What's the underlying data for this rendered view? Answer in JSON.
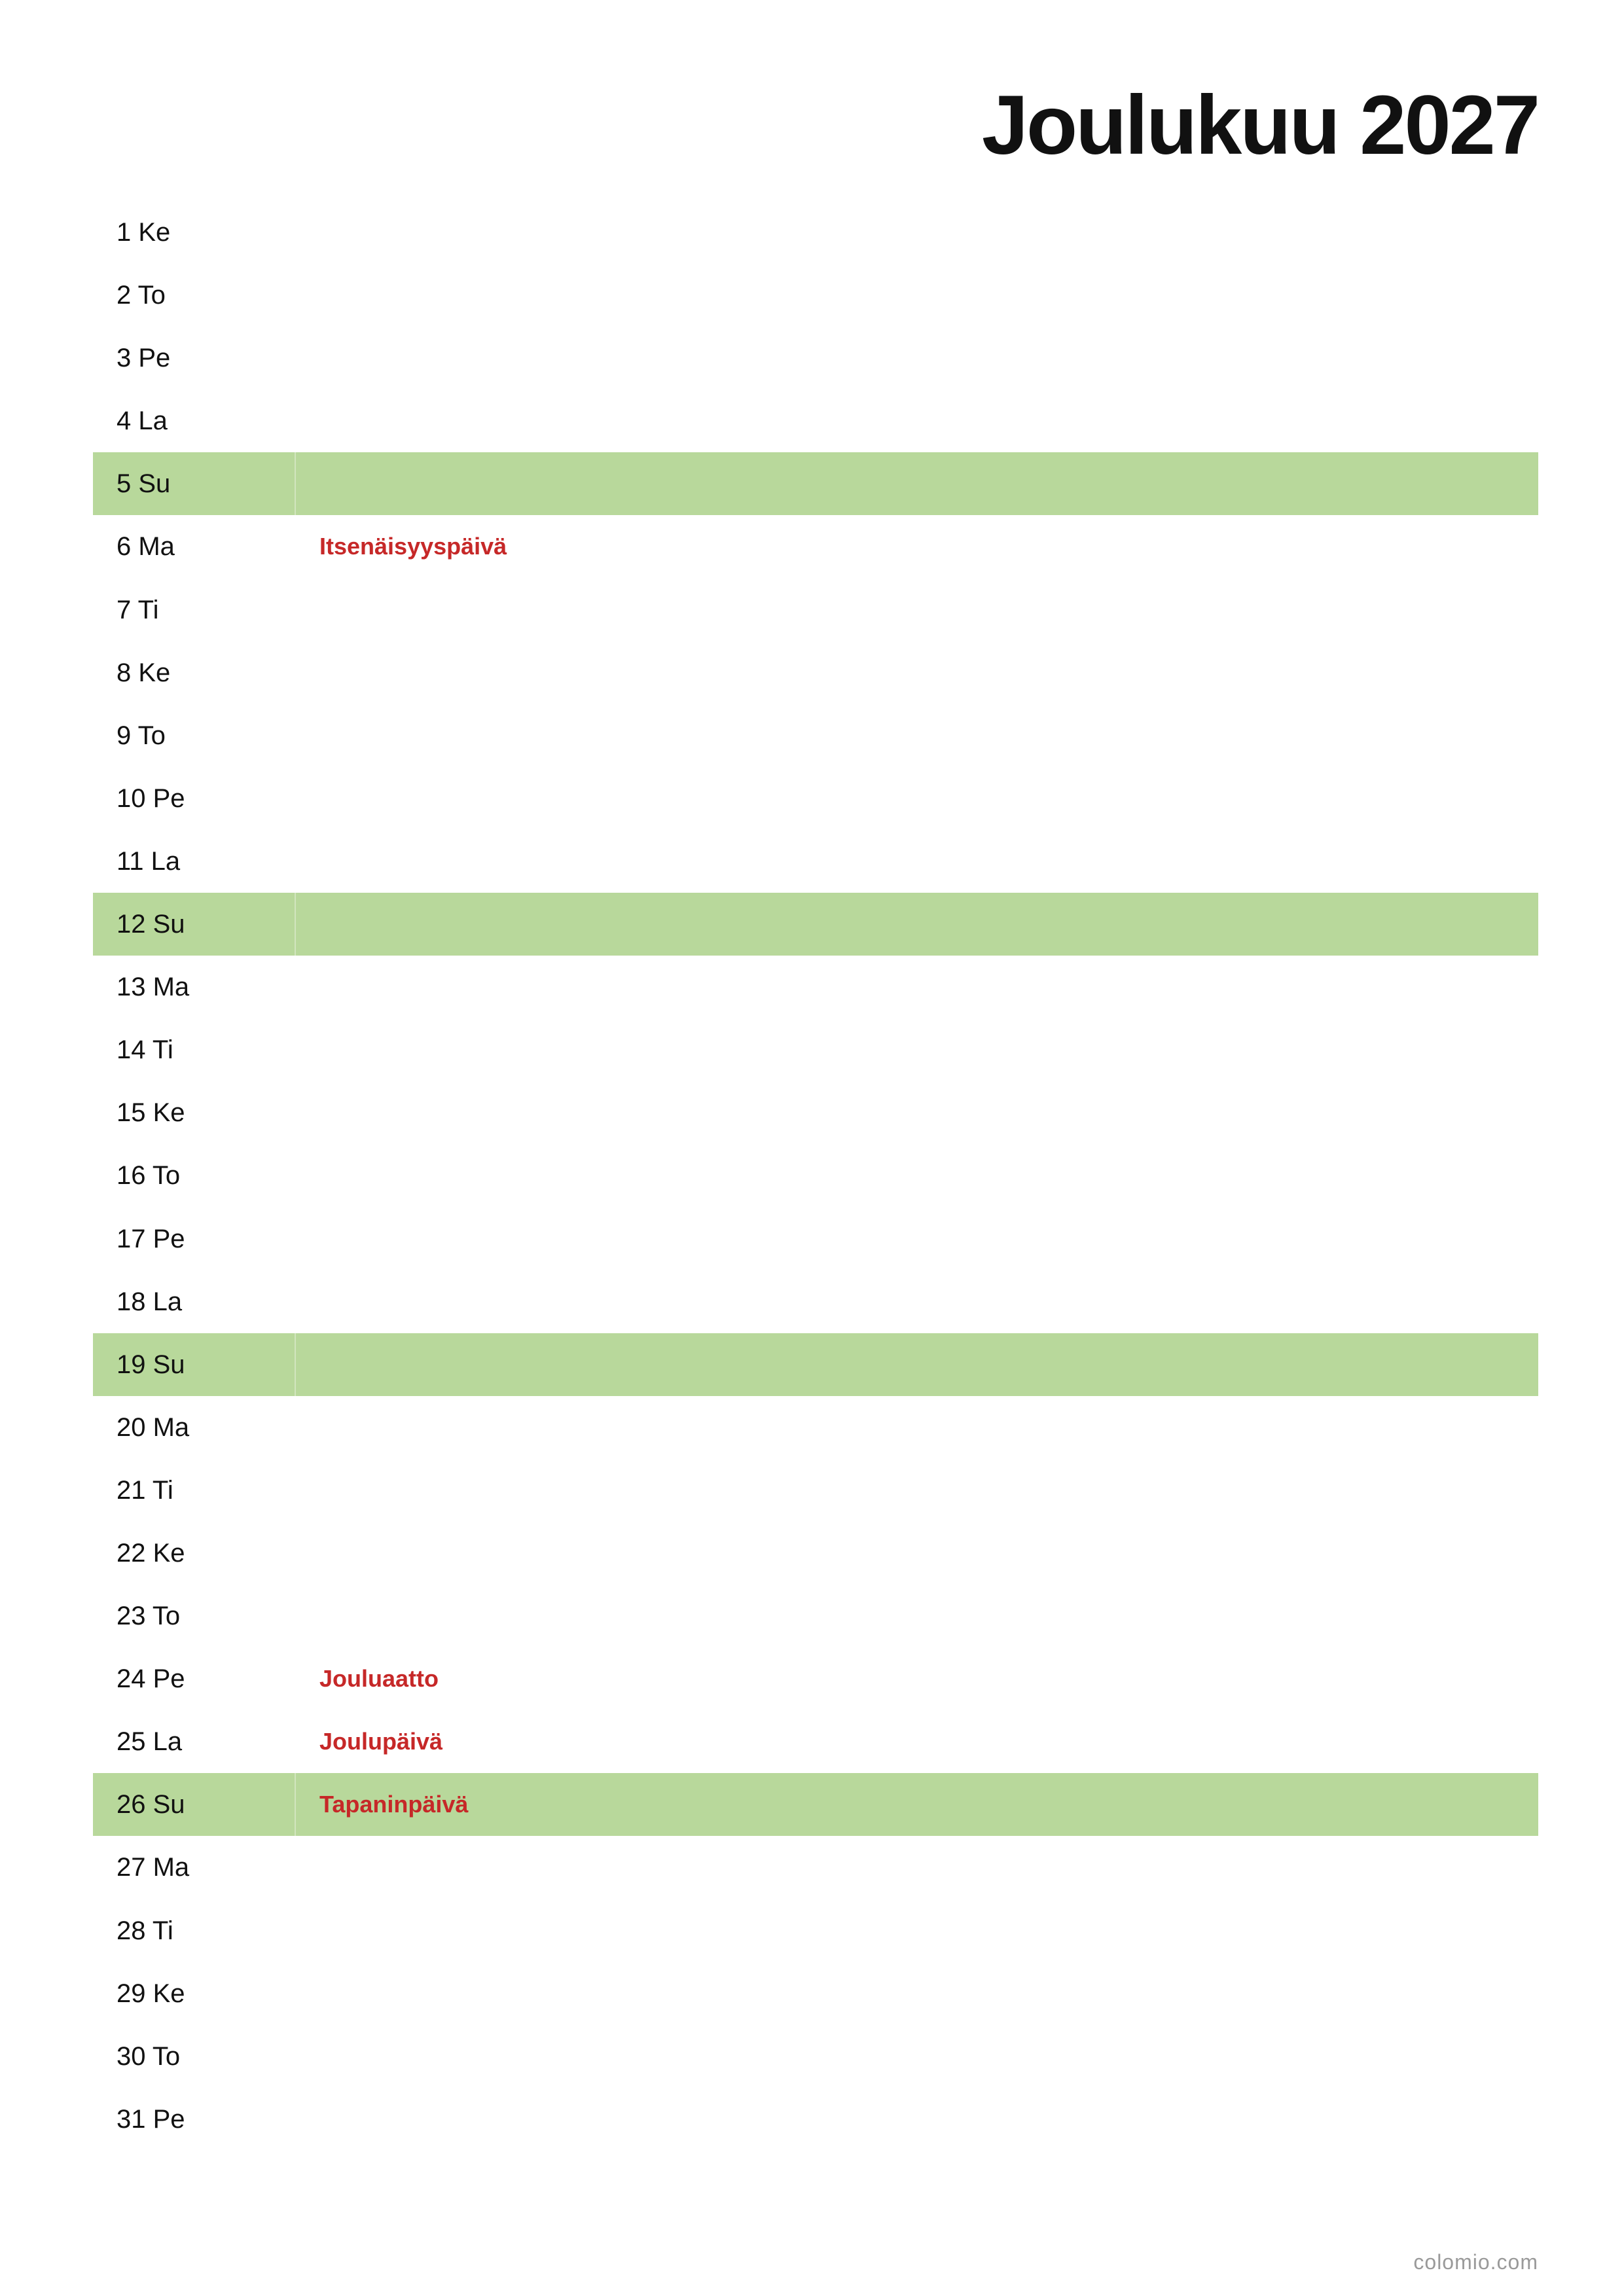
{
  "header": {
    "title": "Joulukuu 2027"
  },
  "highlight_color": "#b8d89b",
  "holiday_color": "#c62828",
  "rows": [
    {
      "day": "1 Ke"
    },
    {
      "day": "2 To"
    },
    {
      "day": "3 Pe"
    },
    {
      "day": "4 La"
    },
    {
      "day": "5 Su",
      "highlighted": true
    },
    {
      "day": "6 Ma",
      "holiday": "Itsenäisyyspäivä"
    },
    {
      "day": "7 Ti"
    },
    {
      "day": "8 Ke"
    },
    {
      "day": "9 To"
    },
    {
      "day": "10 Pe"
    },
    {
      "day": "11 La"
    },
    {
      "day": "12 Su",
      "highlighted": true
    },
    {
      "day": "13 Ma"
    },
    {
      "day": "14 Ti"
    },
    {
      "day": "15 Ke"
    },
    {
      "day": "16 To"
    },
    {
      "day": "17 Pe"
    },
    {
      "day": "18 La"
    },
    {
      "day": "19 Su",
      "highlighted": true
    },
    {
      "day": "20 Ma"
    },
    {
      "day": "21 Ti"
    },
    {
      "day": "22 Ke"
    },
    {
      "day": "23 To"
    },
    {
      "day": "24 Pe",
      "holiday": "Jouluaatto"
    },
    {
      "day": "25 La",
      "holiday": "Joulupäivä"
    },
    {
      "day": "26 Su",
      "holiday": "Tapaninpäivä",
      "highlighted": true
    },
    {
      "day": "27 Ma"
    },
    {
      "day": "28 Ti"
    },
    {
      "day": "29 Ke"
    },
    {
      "day": "30 To"
    },
    {
      "day": "31 Pe"
    }
  ],
  "footer": {
    "text": "colomio.com"
  }
}
